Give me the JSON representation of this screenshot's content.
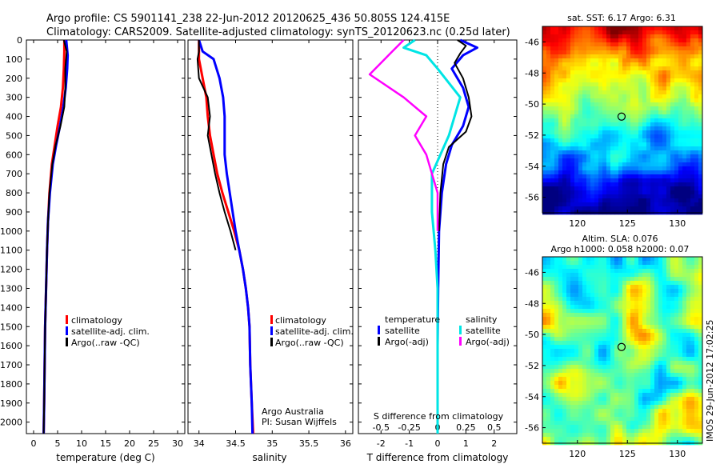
{
  "header": {
    "line1": "Argo profile: CS 5901141_238 22-Jun-2012 20120625_436 50.805S 124.415E",
    "line2": "Climatology: CARS2009. Satellite-adjusted climatology: synTS_20120623.nc (0.25d later)"
  },
  "depth_axis": {
    "ticks": [
      0,
      100,
      200,
      300,
      400,
      500,
      600,
      700,
      800,
      900,
      1000,
      1100,
      1200,
      1300,
      1400,
      1500,
      1600,
      1700,
      1800,
      1900,
      2000
    ],
    "range": [
      0,
      2060
    ]
  },
  "panels": {
    "temperature": {
      "xlabel": "temperature (deg C)",
      "xticks": [
        "0",
        "5",
        "10",
        "15",
        "20",
        "25",
        "30"
      ],
      "xrange": [
        -1.5,
        31.5
      ],
      "legend": [
        "climatology",
        "satellite-adj. clim.",
        "Argo(..raw -QC)"
      ]
    },
    "salinity": {
      "xlabel": "salinity",
      "xticks": [
        "34",
        "34.5",
        "35",
        "35.5",
        "36"
      ],
      "xrange": [
        33.85,
        36.1
      ],
      "legend": [
        "climatology",
        "satellite-adj. clim.",
        "Argo(..raw -QC)"
      ],
      "note1": "Argo Australia",
      "note2": "PI: Susan Wijffels"
    },
    "difference": {
      "xlabel": "T difference from climatology",
      "xlabel_top": "S difference from climatology",
      "xticks": [
        "-2",
        "-1",
        "0",
        "1",
        "2"
      ],
      "xticks_top": [
        "-0.5",
        "-0.25",
        "0",
        "0.25",
        "0.5"
      ],
      "xrange": [
        -2.8,
        2.8
      ],
      "legend_temperature": "temperature",
      "legend_salinity": "salinity",
      "legend_items": [
        "satellite",
        "Argo(-adj)",
        "satellite",
        "Argo(-adj)"
      ]
    }
  },
  "maps": {
    "sst": {
      "title": "sat. SST: 6.17 Argo: 6.31",
      "yticks": [
        "-46",
        "-48",
        "-50",
        "-52",
        "-54",
        "-56"
      ],
      "xticks": [
        "120",
        "125",
        "130"
      ]
    },
    "sla": {
      "title1": "Altim. SLA: 0.076",
      "title2": "Argo h1000: 0.058 h2000: 0.07",
      "yticks": [
        "-46",
        "-48",
        "-50",
        "-52",
        "-54",
        "-56"
      ],
      "xticks": [
        "120",
        "125",
        "130"
      ]
    },
    "float_position": {
      "lon": 124.415,
      "lat": -50.805
    }
  },
  "side_label": "IMOS 29-Jun-2012 17:02:25",
  "colors": {
    "climatology": "#ff0000",
    "satellite": "#0000ff",
    "argo": "#000000",
    "satellite_salinity": "#00e5e5",
    "argo_salinity": "#ff00ff"
  },
  "chart_data": [
    {
      "type": "line",
      "name": "temperature",
      "series": [
        {
          "name": "climatology",
          "points": [
            [
              6.4,
              0
            ],
            [
              6.4,
              60
            ],
            [
              6.3,
              150
            ],
            [
              6.1,
              250
            ],
            [
              5.7,
              350
            ],
            [
              5.0,
              450
            ],
            [
              4.4,
              550
            ],
            [
              3.8,
              650
            ],
            [
              3.3,
              800
            ],
            [
              3.0,
              950
            ],
            [
              2.8,
              1100
            ],
            [
              2.6,
              1300
            ],
            [
              2.4,
              1500
            ],
            [
              2.3,
              1700
            ],
            [
              2.2,
              1900
            ],
            [
              2.1,
              2060
            ]
          ]
        },
        {
          "name": "satellite-adj. clim.",
          "points": [
            [
              6.8,
              0
            ],
            [
              7.1,
              80
            ],
            [
              7.0,
              150
            ],
            [
              6.7,
              250
            ],
            [
              6.2,
              350
            ],
            [
              5.5,
              450
            ],
            [
              4.7,
              550
            ],
            [
              4.0,
              650
            ],
            [
              3.4,
              800
            ],
            [
              3.0,
              950
            ],
            [
              2.8,
              1100
            ],
            [
              2.6,
              1300
            ],
            [
              2.4,
              1500
            ],
            [
              2.3,
              1700
            ],
            [
              2.2,
              1900
            ],
            [
              2.1,
              2060
            ]
          ]
        },
        {
          "name": "Argo(..raw -QC)",
          "points": [
            [
              6.3,
              0
            ],
            [
              6.9,
              60
            ],
            [
              6.6,
              150
            ],
            [
              6.6,
              250
            ],
            [
              6.4,
              350
            ],
            [
              5.6,
              450
            ],
            [
              4.6,
              550
            ],
            [
              3.9,
              650
            ],
            [
              3.3,
              800
            ],
            [
              3.0,
              950
            ],
            [
              2.8,
              1100
            ],
            [
              2.6,
              1300
            ],
            [
              2.4,
              1500
            ],
            [
              2.3,
              1700
            ],
            [
              2.2,
              1900
            ],
            [
              2.1,
              2060
            ]
          ]
        }
      ],
      "xlabel": "temperature (deg C)",
      "xlim": [
        -1.5,
        31.5
      ],
      "ylim": [
        2060,
        0
      ]
    },
    {
      "type": "line",
      "name": "salinity",
      "series": [
        {
          "name": "climatology",
          "points": [
            [
              34.0,
              0
            ],
            [
              34.0,
              100
            ],
            [
              34.05,
              200
            ],
            [
              34.1,
              300
            ],
            [
              34.12,
              400
            ],
            [
              34.15,
              500
            ],
            [
              34.2,
              600
            ],
            [
              34.25,
              700
            ],
            [
              34.32,
              800
            ],
            [
              34.4,
              900
            ],
            [
              34.48,
              1000
            ],
            [
              34.55,
              1100
            ],
            [
              34.6,
              1200
            ],
            [
              34.64,
              1300
            ],
            [
              34.67,
              1400
            ],
            [
              34.69,
              1500
            ],
            [
              34.7,
              1700
            ],
            [
              34.72,
              1900
            ],
            [
              34.74,
              2060
            ]
          ]
        },
        {
          "name": "satellite-adj. clim.",
          "points": [
            [
              34.0,
              0
            ],
            [
              34.05,
              60
            ],
            [
              34.2,
              100
            ],
            [
              34.28,
              200
            ],
            [
              34.33,
              300
            ],
            [
              34.35,
              400
            ],
            [
              34.35,
              500
            ],
            [
              34.35,
              600
            ],
            [
              34.38,
              700
            ],
            [
              34.42,
              800
            ],
            [
              34.46,
              900
            ],
            [
              34.5,
              1000
            ],
            [
              34.55,
              1100
            ],
            [
              34.6,
              1200
            ],
            [
              34.64,
              1300
            ],
            [
              34.67,
              1400
            ],
            [
              34.69,
              1500
            ],
            [
              34.7,
              1700
            ],
            [
              34.72,
              1900
            ],
            [
              34.73,
              2060
            ]
          ]
        },
        {
          "name": "Argo(..raw -QC)",
          "points": [
            [
              34.0,
              0
            ],
            [
              34.0,
              60
            ],
            [
              33.98,
              100
            ],
            [
              34.0,
              200
            ],
            [
              34.12,
              300
            ],
            [
              34.15,
              400
            ],
            [
              34.12,
              500
            ],
            [
              34.17,
              600
            ],
            [
              34.22,
              700
            ],
            [
              34.28,
              800
            ],
            [
              34.35,
              900
            ],
            [
              34.43,
              1000
            ],
            [
              34.5,
              1100
            ]
          ]
        }
      ],
      "xlabel": "salinity",
      "xlim": [
        33.85,
        36.1
      ],
      "ylim": [
        2060,
        0
      ]
    },
    {
      "type": "line",
      "name": "difference",
      "series": [
        {
          "name": "temperature satellite",
          "points": [
            [
              0.8,
              0
            ],
            [
              1.4,
              40
            ],
            [
              0.9,
              80
            ],
            [
              0.5,
              150
            ],
            [
              0.9,
              250
            ],
            [
              1.1,
              350
            ],
            [
              0.9,
              450
            ],
            [
              0.5,
              550
            ],
            [
              0.3,
              650
            ],
            [
              0.15,
              800
            ],
            [
              0.05,
              1000
            ],
            [
              0.02,
              1300
            ],
            [
              0.0,
              1600
            ],
            [
              0.0,
              1900
            ],
            [
              0.0,
              2060
            ]
          ]
        },
        {
          "name": "temperature Argo(-adj)",
          "points": [
            [
              0.7,
              0
            ],
            [
              1.0,
              30
            ],
            [
              0.8,
              70
            ],
            [
              0.6,
              120
            ],
            [
              0.9,
              200
            ],
            [
              1.1,
              300
            ],
            [
              1.2,
              400
            ],
            [
              1.0,
              480
            ],
            [
              0.4,
              560
            ],
            [
              0.2,
              650
            ],
            [
              0.1,
              800
            ],
            [
              0.05,
              1000
            ]
          ]
        },
        {
          "name": "salinity satellite",
          "points": [
            [
              -0.2,
              0
            ],
            [
              -0.3,
              40
            ],
            [
              -0.1,
              80
            ],
            [
              0.0,
              150
            ],
            [
              0.2,
              300
            ],
            [
              0.1,
              500
            ],
            [
              -0.05,
              700
            ],
            [
              -0.05,
              900
            ],
            [
              -0.02,
              1100
            ],
            [
              0.0,
              1300
            ],
            [
              0.0,
              1600
            ],
            [
              0.0,
              1900
            ],
            [
              0.0,
              2060
            ]
          ]
        },
        {
          "name": "salinity Argo(-adj)",
          "points": [
            [
              -0.3,
              0
            ],
            [
              -0.4,
              60
            ],
            [
              -0.6,
              180
            ],
            [
              -0.3,
              300
            ],
            [
              -0.1,
              400
            ],
            [
              -0.2,
              500
            ],
            [
              -0.1,
              600
            ],
            [
              -0.05,
              700
            ],
            [
              0.0,
              800
            ],
            [
              0.0,
              900
            ],
            [
              0.0,
              1000
            ]
          ]
        }
      ],
      "xlabel": "T difference from climatology",
      "xlabel_top": "S difference from climatology",
      "xlim": [
        -2.8,
        2.8
      ],
      "ylim": [
        2060,
        0
      ]
    },
    {
      "type": "heatmap",
      "name": "sat. SST",
      "title": "sat. SST: 6.17 Argo: 6.31",
      "xlim": [
        116.5,
        132.5
      ],
      "ylim": [
        -57,
        -45
      ],
      "marker": [
        124.415,
        -50.805
      ]
    },
    {
      "type": "heatmap",
      "name": "Altim. SLA",
      "title": "Altim. SLA: 0.076 / Argo h1000: 0.058 h2000: 0.07",
      "xlim": [
        116.5,
        132.5
      ],
      "ylim": [
        -57,
        -45
      ],
      "marker": [
        124.415,
        -50.805
      ]
    }
  ]
}
